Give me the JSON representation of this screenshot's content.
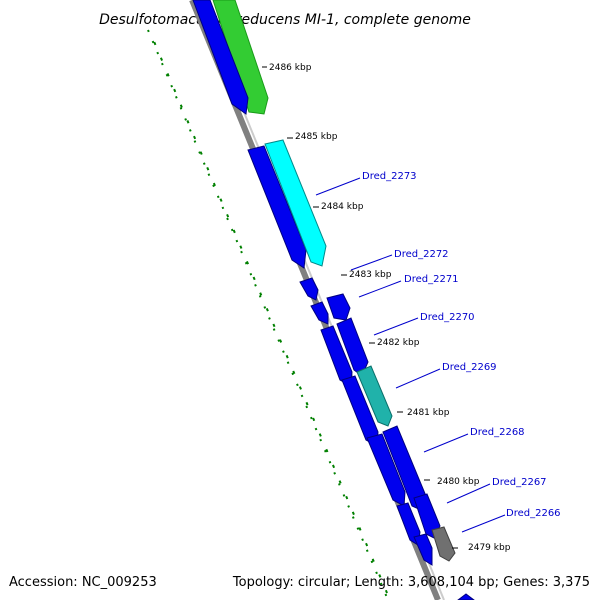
{
  "title": "Desulfotomaculum reducens MI-1, complete genome",
  "footer": {
    "accession": "Accession: NC_009253",
    "summary": "Topology: circular; Length: 3,608,104 bp; Genes: 3,375"
  },
  "kbp_labels": [
    "2486 kbp",
    "2485 kbp",
    "2484 kbp",
    "2483 kbp",
    "2482 kbp",
    "2481 kbp",
    "2480 kbp",
    "2479 kbp"
  ],
  "gene_labels": [
    "Dred_2273",
    "Dred_2272",
    "Dred_2271",
    "Dred_2270",
    "Dred_2269",
    "Dred_2268",
    "Dred_2267",
    "Dred_2266"
  ],
  "colors": {
    "cds": "#0000ee",
    "backbone": "#808080",
    "gc_skew": "#008000",
    "green_feature": "#33cc33",
    "cyan_feature": "#00ffff",
    "teal_feature": "#20b2aa",
    "gray_feature": "#707070"
  }
}
